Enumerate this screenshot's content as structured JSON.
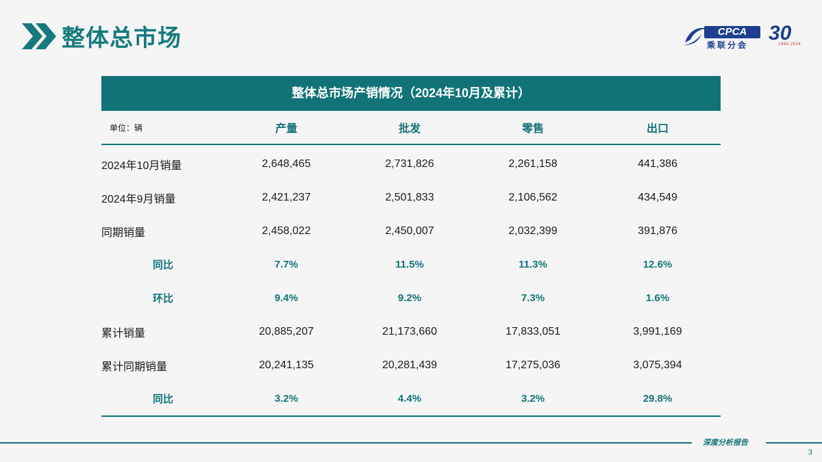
{
  "page": {
    "title": "整体总市场",
    "page_number": "3",
    "footer_label": "深度分析报告"
  },
  "logo": {
    "brand": "CPCA",
    "brand_cn": "乘联分会",
    "anniversary": "30",
    "years": "1994-2024"
  },
  "table": {
    "title": "整体总市场产销情况（2024年10月及累计）",
    "unit_label": "单位：辆",
    "columns": [
      "产量",
      "批发",
      "零售",
      "出口"
    ],
    "rows": [
      {
        "label": "2024年10月销量",
        "values": [
          "2,648,465",
          "2,731,826",
          "2,261,158",
          "441,386"
        ],
        "type": "value"
      },
      {
        "label": "2024年9月销量",
        "values": [
          "2,421,237",
          "2,501,833",
          "2,106,562",
          "434,549"
        ],
        "type": "value"
      },
      {
        "label": "同期销量",
        "values": [
          "2,458,022",
          "2,450,007",
          "2,032,399",
          "391,876"
        ],
        "type": "value"
      },
      {
        "label": "同比",
        "values": [
          "7.7%",
          "11.5%",
          "11.3%",
          "12.6%"
        ],
        "type": "pct"
      },
      {
        "label": "环比",
        "values": [
          "9.4%",
          "9.2%",
          "7.3%",
          "1.6%"
        ],
        "type": "pct"
      },
      {
        "label": "累计销量",
        "values": [
          "20,885,207",
          "21,173,660",
          "17,833,051",
          "3,991,169"
        ],
        "type": "value"
      },
      {
        "label": "累计同期销量",
        "values": [
          "20,241,135",
          "20,281,439",
          "17,275,036",
          "3,075,394"
        ],
        "type": "value"
      },
      {
        "label": "同比",
        "values": [
          "3.2%",
          "4.4%",
          "3.2%",
          "29.8%"
        ],
        "type": "pct"
      }
    ]
  },
  "colors": {
    "accent": "#117377",
    "title": "#157a7e",
    "brand_blue": "#1e3f8f"
  }
}
